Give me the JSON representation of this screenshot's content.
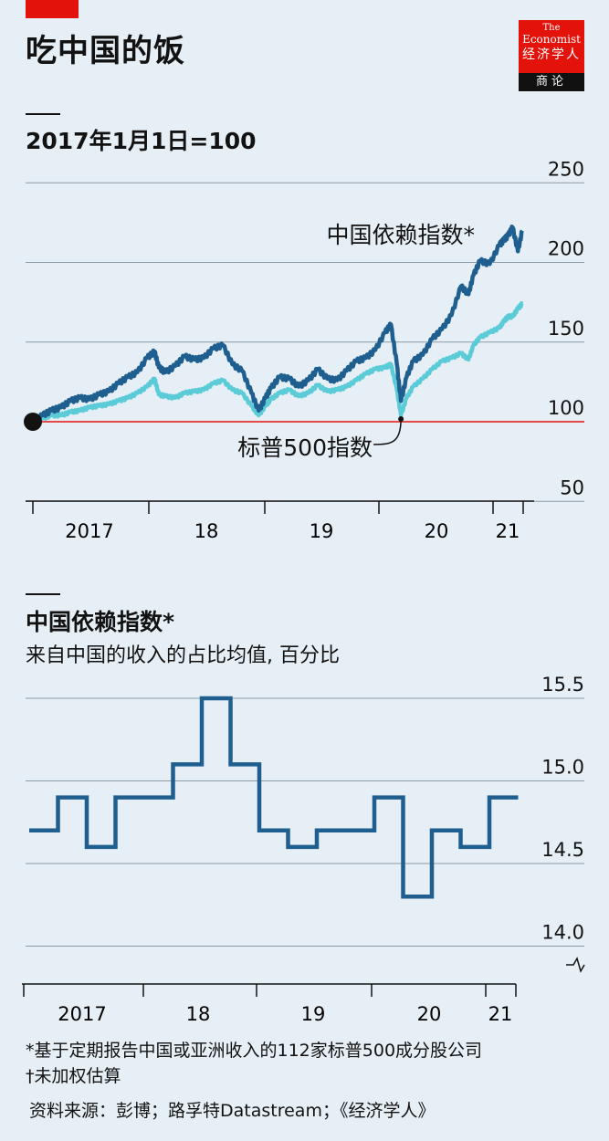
{
  "header": {
    "title": "吃中国的饭",
    "logo": {
      "the": "The",
      "name": "Economist",
      "cn_name": "经济学人",
      "section": "商论"
    }
  },
  "chart_data": [
    {
      "type": "line",
      "title": "2017年1月1日=100",
      "x_ticks": [
        "2017",
        "18",
        "19",
        "20",
        "21"
      ],
      "ylim": [
        50,
        250
      ],
      "y_ticks": [
        "250",
        "200",
        "150",
        "100",
        "50"
      ],
      "baseline": 100,
      "start_marker": "2017-01-01",
      "grid": true,
      "series": [
        {
          "name": "中国依赖指数*",
          "color": "#1f5f8f",
          "x": [
            "2017-01-01",
            "2017-02-01",
            "2017-03-01",
            "2017-04-01",
            "2017-05-01",
            "2017-06-01",
            "2017-07-01",
            "2017-08-01",
            "2017-09-01",
            "2017-10-01",
            "2017-11-01",
            "2017-12-01",
            "2018-01-01",
            "2018-01-25",
            "2018-02-08",
            "2018-03-01",
            "2018-04-01",
            "2018-05-01",
            "2018-06-01",
            "2018-07-01",
            "2018-08-01",
            "2018-09-01",
            "2018-10-01",
            "2018-11-01",
            "2018-12-01",
            "2018-12-24",
            "2019-01-15",
            "2019-02-01",
            "2019-03-01",
            "2019-04-01",
            "2019-05-01",
            "2019-06-01",
            "2019-07-01",
            "2019-08-01",
            "2019-09-01",
            "2019-10-01",
            "2019-11-01",
            "2019-12-01",
            "2020-01-01",
            "2020-02-01",
            "2020-02-20",
            "2020-03-10",
            "2020-03-23",
            "2020-04-10",
            "2020-05-01",
            "2020-06-01",
            "2020-07-01",
            "2020-08-01",
            "2020-09-01",
            "2020-10-01",
            "2020-10-25",
            "2020-11-10",
            "2020-12-01",
            "2021-01-01",
            "2021-02-01",
            "2021-02-15",
            "2021-03-01",
            "2021-03-15",
            "2021-04-01",
            "2021-04-15"
          ],
          "values": [
            100,
            104,
            107,
            109,
            113,
            115,
            114,
            117,
            119,
            124,
            128,
            131,
            140,
            144,
            134,
            131,
            135,
            141,
            139,
            140,
            146,
            148,
            136,
            132,
            118,
            107,
            115,
            121,
            128,
            127,
            122,
            126,
            133,
            127,
            126,
            132,
            138,
            140,
            145,
            156,
            161,
            136,
            113,
            128,
            138,
            142,
            152,
            158,
            167,
            185,
            180,
            192,
            201,
            199,
            211,
            214,
            217,
            222,
            207,
            220
          ]
        },
        {
          "name": "标普500指数",
          "color": "#5bcbd8",
          "x": [
            "2017-01-01",
            "2017-02-01",
            "2017-03-01",
            "2017-04-01",
            "2017-05-01",
            "2017-06-01",
            "2017-07-01",
            "2017-08-01",
            "2017-09-01",
            "2017-10-01",
            "2017-11-01",
            "2017-12-01",
            "2018-01-01",
            "2018-01-25",
            "2018-02-08",
            "2018-03-01",
            "2018-04-01",
            "2018-05-01",
            "2018-06-01",
            "2018-07-01",
            "2018-08-01",
            "2018-09-01",
            "2018-10-01",
            "2018-11-01",
            "2018-12-01",
            "2018-12-24",
            "2019-01-15",
            "2019-02-01",
            "2019-03-01",
            "2019-04-01",
            "2019-05-01",
            "2019-06-01",
            "2019-07-01",
            "2019-08-01",
            "2019-09-01",
            "2019-10-01",
            "2019-11-01",
            "2019-12-01",
            "2020-01-01",
            "2020-02-01",
            "2020-02-20",
            "2020-03-10",
            "2020-03-23",
            "2020-04-10",
            "2020-05-01",
            "2020-06-01",
            "2020-07-01",
            "2020-08-01",
            "2020-09-01",
            "2020-10-01",
            "2020-10-25",
            "2020-11-10",
            "2020-12-01",
            "2021-01-01",
            "2021-02-01",
            "2021-02-15",
            "2021-03-01",
            "2021-03-15",
            "2021-04-01",
            "2021-04-15"
          ],
          "values": [
            100,
            102,
            104,
            104,
            106,
            107,
            109,
            110,
            111,
            113,
            115,
            118,
            122,
            127,
            117,
            116,
            115,
            118,
            119,
            120,
            124,
            126,
            120,
            118,
            110,
            104,
            110,
            114,
            118,
            120,
            116,
            118,
            123,
            119,
            120,
            122,
            126,
            130,
            133,
            134,
            136,
            120,
            104,
            115,
            122,
            127,
            133,
            138,
            140,
            143,
            139,
            148,
            153,
            156,
            159,
            163,
            166,
            166,
            171,
            174
          ]
        }
      ],
      "annotations": [
        "中国依赖指数*",
        "标普500指数"
      ]
    },
    {
      "type": "line",
      "title": "中国依赖指数*",
      "subtitle": "来自中国的收入的占比均值, 百分比",
      "x_ticks": [
        "2017",
        "18",
        "19",
        "20",
        "21"
      ],
      "ylim": [
        13.8,
        15.6
      ],
      "y_ticks": [
        "15.5",
        "15.0",
        "14.5",
        "14.0"
      ],
      "axis_break_below": 14.0,
      "grid": true,
      "series": [
        {
          "name": "中国依赖指数*",
          "color": "#1f5f8f",
          "step": true,
          "x": [
            "2017-Q1",
            "2017-Q2",
            "2017-Q3",
            "2017-Q4",
            "2018-Q1",
            "2018-Q2",
            "2018-Q3",
            "2018-Q4",
            "2019-Q1",
            "2019-Q2",
            "2019-Q3",
            "2019-Q4",
            "2020-Q1",
            "2020-Q2",
            "2020-Q3",
            "2020-Q4",
            "2021-Q1"
          ],
          "values": [
            14.7,
            14.9,
            14.6,
            14.9,
            14.9,
            15.1,
            15.5,
            15.1,
            14.7,
            14.6,
            14.7,
            14.7,
            14.9,
            14.3,
            14.7,
            14.6,
            14.9
          ]
        }
      ]
    }
  ],
  "footer": {
    "note1": "*基于定期报告中国或亚洲收入的112家标普500成分股公司",
    "note2": "†未加权估算",
    "source": "资料来源：彭博；路孚特Datastream；《经济学人》"
  }
}
